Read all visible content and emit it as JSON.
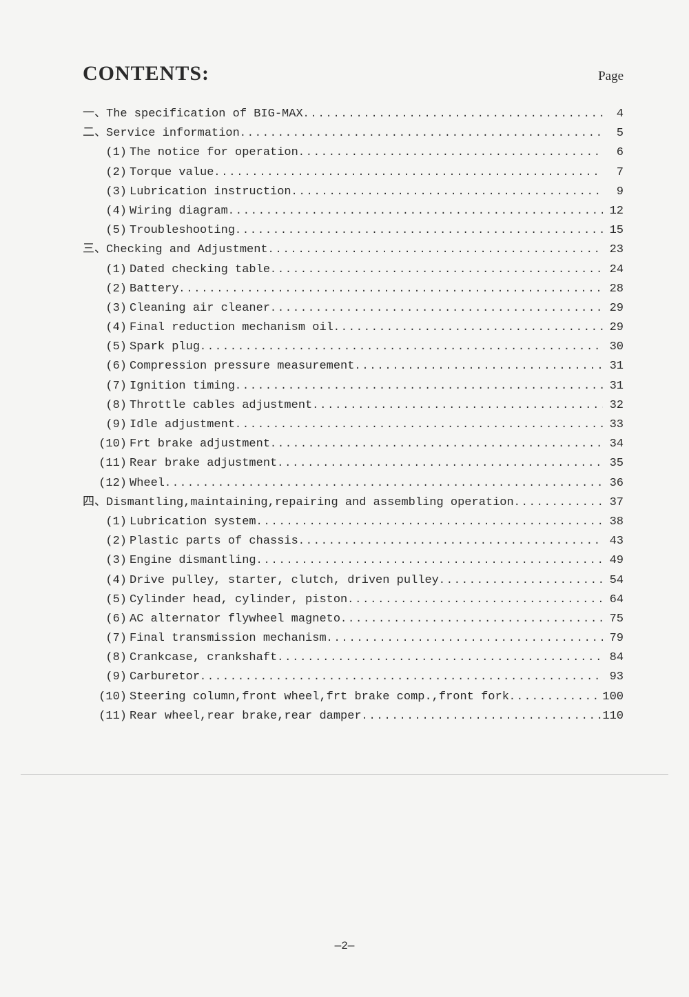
{
  "header": {
    "title": "CONTENTS:",
    "page_label": "Page"
  },
  "page_number": "—2—",
  "toc": [
    {
      "indent": 0,
      "prefix": "一、",
      "text": "The specification of BIG-MAX",
      "page": "4",
      "prefix_class": "section"
    },
    {
      "indent": 0,
      "prefix": "二、",
      "text": "Service information",
      "page": "5",
      "prefix_class": "section"
    },
    {
      "indent": 1,
      "prefix": "(1)",
      "text": "The notice for operation",
      "page": "6"
    },
    {
      "indent": 1,
      "prefix": "(2)",
      "text": "Torque value",
      "page": "7"
    },
    {
      "indent": 1,
      "prefix": "(3)",
      "text": "Lubrication instruction",
      "page": "9"
    },
    {
      "indent": 1,
      "prefix": "(4)",
      "text": "Wiring diagram",
      "page": "12"
    },
    {
      "indent": 1,
      "prefix": "(5)",
      "text": "Troubleshooting",
      "page": "15"
    },
    {
      "indent": 0,
      "prefix": "三、",
      "text": "Checking and Adjustment",
      "page": "23",
      "prefix_class": "section"
    },
    {
      "indent": 1,
      "prefix": "(1)",
      "text": "Dated checking table",
      "page": "24"
    },
    {
      "indent": 1,
      "prefix": "(2)",
      "text": "Battery",
      "page": "28"
    },
    {
      "indent": 1,
      "prefix": "(3)",
      "text": "Cleaning air cleaner",
      "page": "29"
    },
    {
      "indent": 1,
      "prefix": "(4)",
      "text": "Final reduction mechanism oil",
      "page": "29"
    },
    {
      "indent": 1,
      "prefix": "(5)",
      "text": "Spark plug",
      "page": "30"
    },
    {
      "indent": 1,
      "prefix": "(6)",
      "text": "Compression pressure measurement",
      "page": "31"
    },
    {
      "indent": 1,
      "prefix": "(7)",
      "text": "Ignition timing",
      "page": "31"
    },
    {
      "indent": 1,
      "prefix": "(8)",
      "text": "Throttle cables adjustment",
      "page": "32"
    },
    {
      "indent": 1,
      "prefix": "(9)",
      "text": "Idle adjustment",
      "page": "33"
    },
    {
      "indent": 1,
      "prefix": "(10)",
      "text": "Frt brake adjustment",
      "page": "34"
    },
    {
      "indent": 1,
      "prefix": "(11)",
      "text": "Rear brake adjustment",
      "page": "35"
    },
    {
      "indent": 1,
      "prefix": "(12)",
      "text": "Wheel",
      "page": "36"
    },
    {
      "indent": 0,
      "prefix": "四、",
      "text": "Dismantling,maintaining,repairing and assembling operation",
      "page": "37",
      "prefix_class": "section"
    },
    {
      "indent": 1,
      "prefix": "(1)",
      "text": "Lubrication system",
      "page": "38"
    },
    {
      "indent": 1,
      "prefix": "(2)",
      "text": "Plastic parts of chassis",
      "page": "43"
    },
    {
      "indent": 1,
      "prefix": "(3)",
      "text": "Engine dismantling",
      "page": "49"
    },
    {
      "indent": 1,
      "prefix": "(4)",
      "text": "Drive pulley, starter, clutch, driven pulley",
      "page": "54"
    },
    {
      "indent": 1,
      "prefix": "(5)",
      "text": "Cylinder head, cylinder, piston",
      "page": "64"
    },
    {
      "indent": 1,
      "prefix": "(6)",
      "text": "AC alternator flywheel magneto",
      "page": "75"
    },
    {
      "indent": 1,
      "prefix": "(7)",
      "text": "Final transmission mechanism",
      "page": "79"
    },
    {
      "indent": 1,
      "prefix": "(8)",
      "text": "Crankcase, crankshaft",
      "page": "84"
    },
    {
      "indent": 1,
      "prefix": "(9)",
      "text": "Carburetor",
      "page": "93"
    },
    {
      "indent": 1,
      "prefix": "(10)",
      "text": "Steering column,front wheel,frt brake comp.,front fork",
      "page": "100"
    },
    {
      "indent": 1,
      "prefix": "(11)",
      "text": "Rear wheel,rear brake,rear damper",
      "page": "110"
    }
  ]
}
